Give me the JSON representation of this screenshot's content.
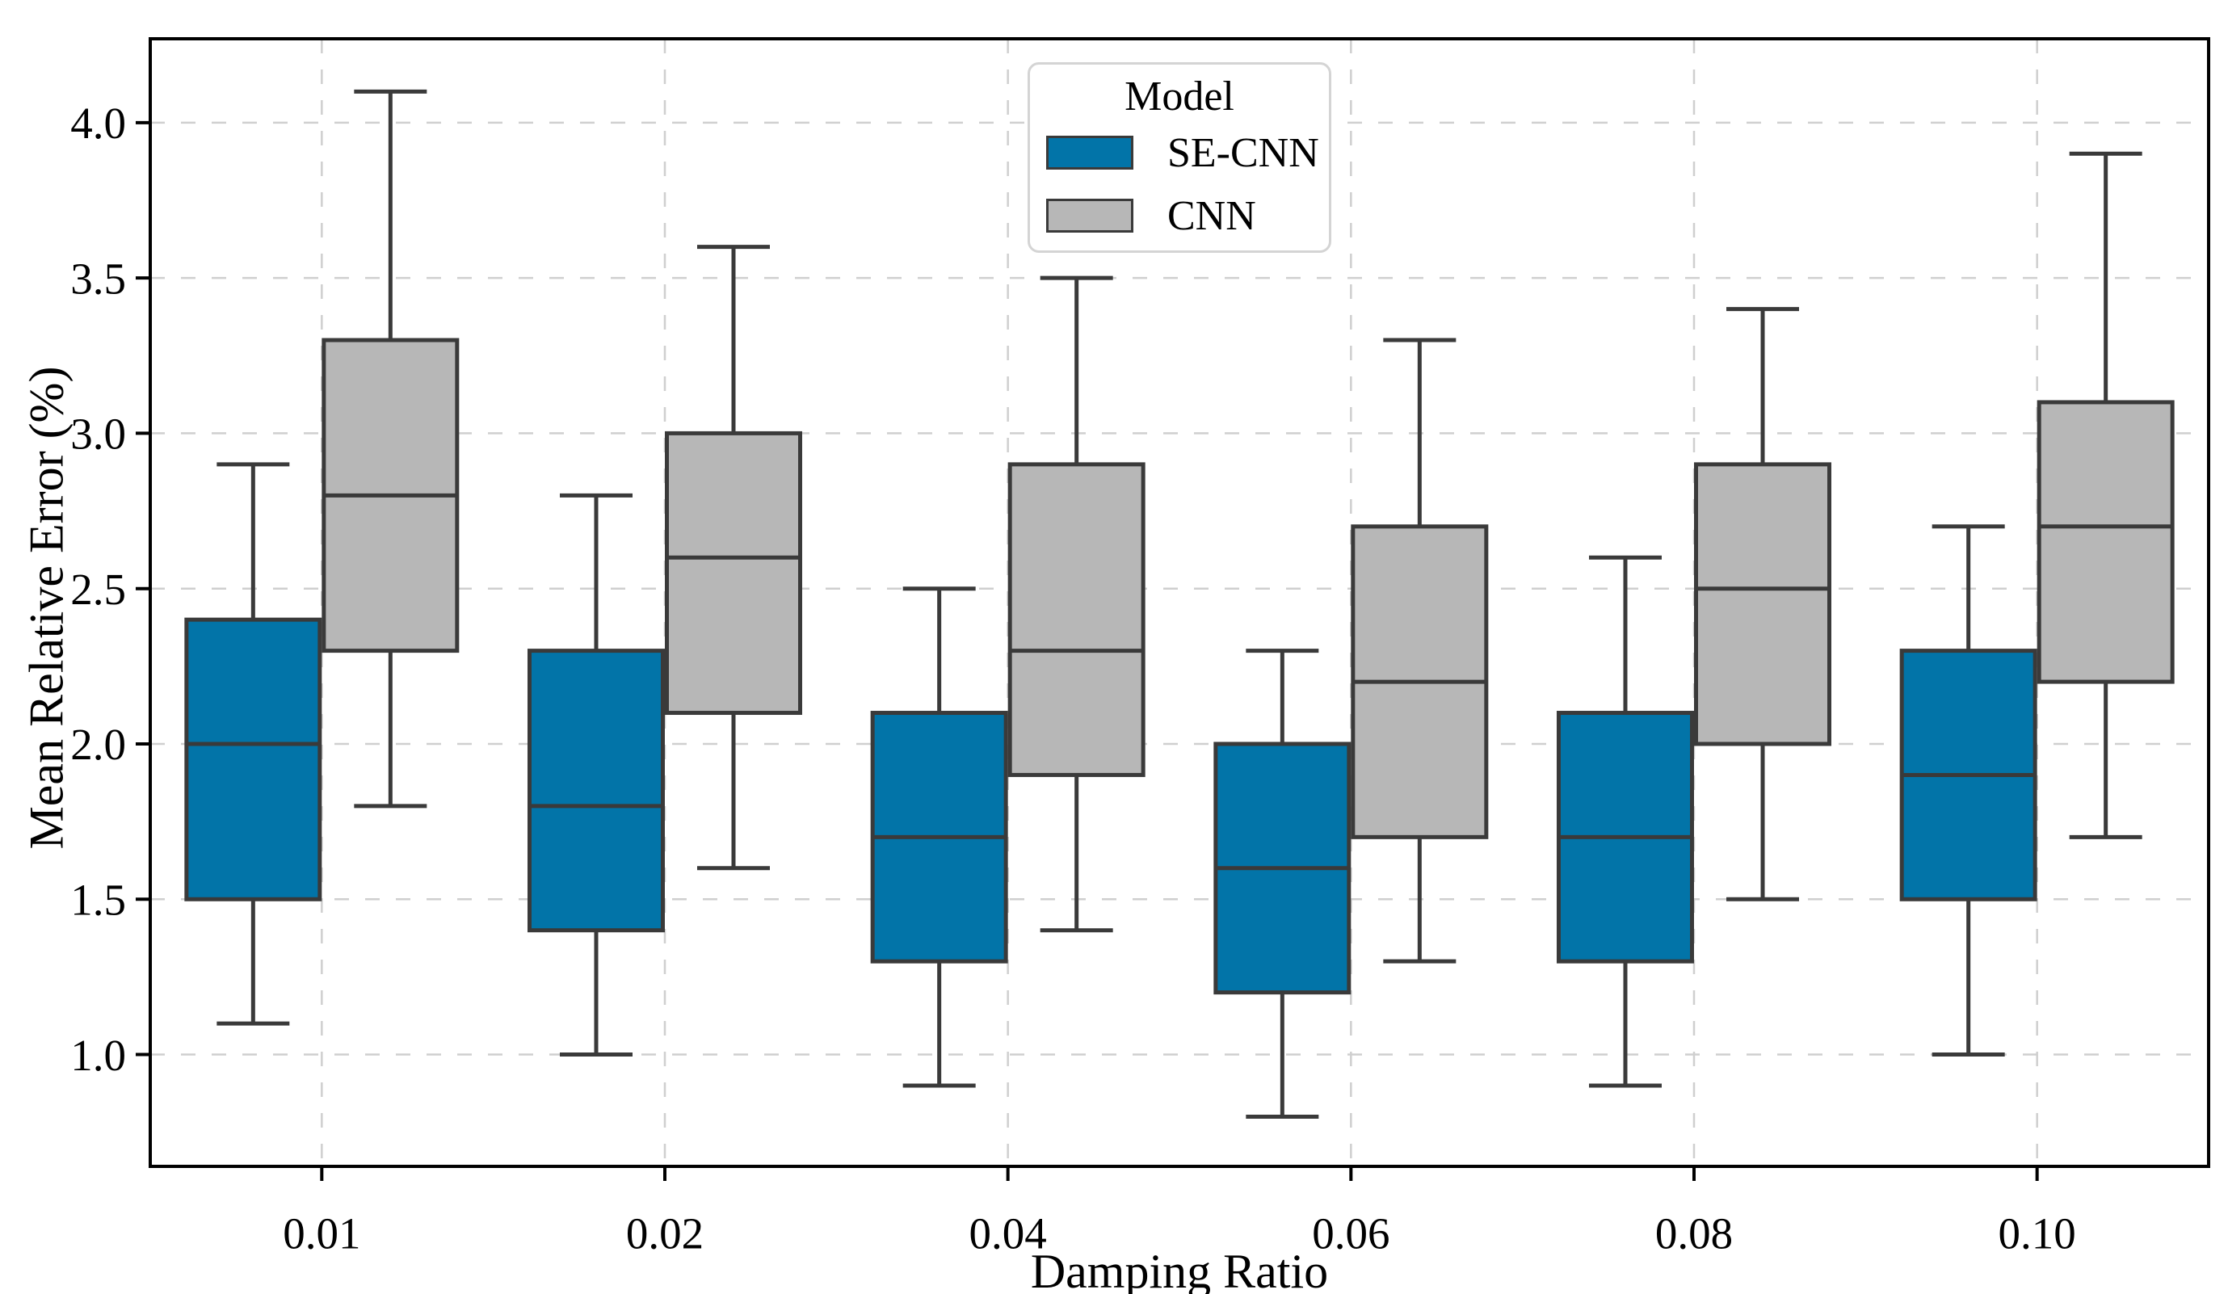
{
  "figure": {
    "background": "#ffffff"
  },
  "chart_data": {
    "type": "boxplot",
    "title": "",
    "xlabel": "Damping Ratio",
    "ylabel": "Mean Relative Error (%)",
    "categories": [
      "0.01",
      "0.02",
      "0.04",
      "0.06",
      "0.08",
      "0.10"
    ],
    "y_ticks": [
      1.0,
      1.5,
      2.0,
      2.5,
      3.0,
      3.5,
      4.0
    ],
    "y_tick_labels": [
      "1.0",
      "1.5",
      "2.0",
      "2.5",
      "3.0",
      "3.5",
      "4.0"
    ],
    "ylim": [
      0.64,
      4.27
    ],
    "grid": true,
    "grid_color": "#cfcfcf",
    "edge_color": "#3a3a3a",
    "spine_color": "#000000",
    "legend": {
      "title": "Model",
      "position": "upper center"
    },
    "series": [
      {
        "name": "SE-CNN",
        "color": "#0274a8",
        "boxes": [
          {
            "category": "0.01",
            "whislo": 1.1,
            "q1": 1.5,
            "med": 2.0,
            "q3": 2.4,
            "whishi": 2.9
          },
          {
            "category": "0.02",
            "whislo": 1.0,
            "q1": 1.4,
            "med": 1.8,
            "q3": 2.3,
            "whishi": 2.8
          },
          {
            "category": "0.04",
            "whislo": 0.9,
            "q1": 1.3,
            "med": 1.7,
            "q3": 2.1,
            "whishi": 2.5
          },
          {
            "category": "0.06",
            "whislo": 0.8,
            "q1": 1.2,
            "med": 1.6,
            "q3": 2.0,
            "whishi": 2.3
          },
          {
            "category": "0.08",
            "whislo": 0.9,
            "q1": 1.3,
            "med": 1.7,
            "q3": 2.1,
            "whishi": 2.6
          },
          {
            "category": "0.10",
            "whislo": 1.0,
            "q1": 1.5,
            "med": 1.9,
            "q3": 2.3,
            "whishi": 2.7
          }
        ]
      },
      {
        "name": "CNN",
        "color": "#b7b7b7",
        "boxes": [
          {
            "category": "0.01",
            "whislo": 1.8,
            "q1": 2.3,
            "med": 2.8,
            "q3": 3.3,
            "whishi": 4.1
          },
          {
            "category": "0.02",
            "whislo": 1.6,
            "q1": 2.1,
            "med": 2.6,
            "q3": 3.0,
            "whishi": 3.6
          },
          {
            "category": "0.04",
            "whislo": 1.4,
            "q1": 1.9,
            "med": 2.3,
            "q3": 2.9,
            "whishi": 3.5
          },
          {
            "category": "0.06",
            "whislo": 1.3,
            "q1": 1.7,
            "med": 2.2,
            "q3": 2.7,
            "whishi": 3.3
          },
          {
            "category": "0.08",
            "whislo": 1.5,
            "q1": 2.0,
            "med": 2.5,
            "q3": 2.9,
            "whishi": 3.4
          },
          {
            "category": "0.10",
            "whislo": 1.7,
            "q1": 2.2,
            "med": 2.7,
            "q3": 3.1,
            "whishi": 3.9
          }
        ]
      }
    ]
  }
}
